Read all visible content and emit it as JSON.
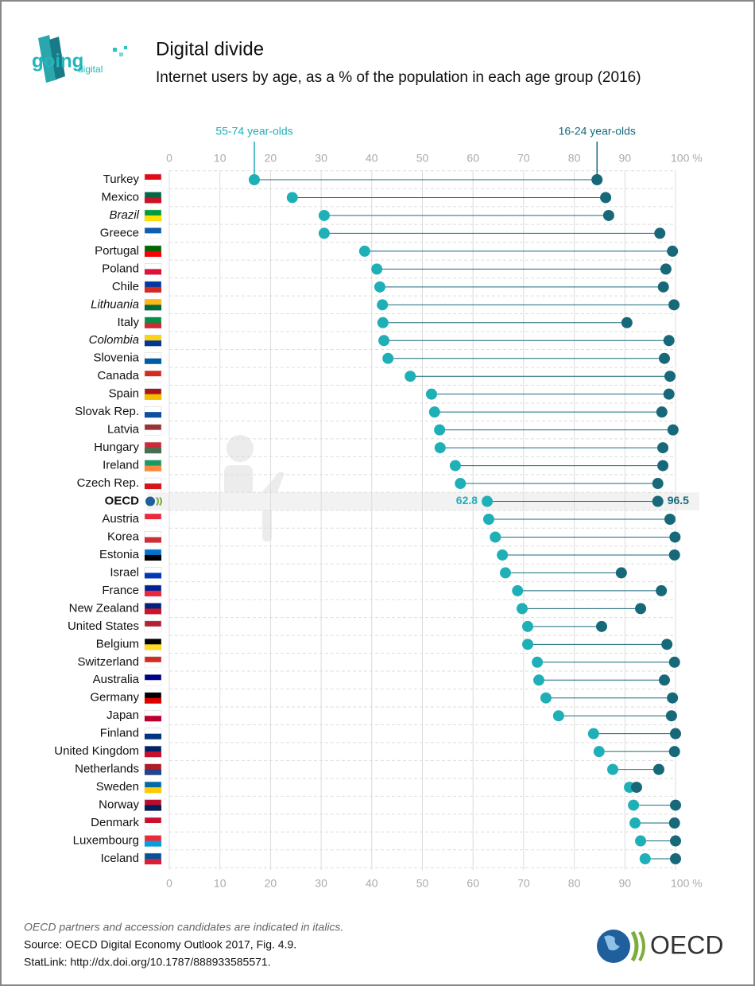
{
  "chart_data": {
    "type": "dumbbell",
    "title": "Digital divide",
    "subtitle": "Internet users by age, as a % of the population in each age group (2016)",
    "categories": [
      "Turkey",
      "Mexico",
      "Brazil",
      "Greece",
      "Portugal",
      "Poland",
      "Chile",
      "Lithuania",
      "Italy",
      "Colombia",
      "Slovenia",
      "Canada",
      "Spain",
      "Slovak Rep.",
      "Latvia",
      "Hungary",
      "Ireland",
      "Czech Rep.",
      "OECD",
      "Austria",
      "Korea",
      "Estonia",
      "Israel",
      "France",
      "New Zealand",
      "United States",
      "Belgium",
      "Switzerland",
      "Australia",
      "Germany",
      "Japan",
      "Finland",
      "United Kingdom",
      "Netherlands",
      "Sweden",
      "Norway",
      "Denmark",
      "Luxembourg",
      "Iceland"
    ],
    "italic": [
      2,
      7,
      9
    ],
    "highlight": 18,
    "series": [
      {
        "name": "55-74 year-olds",
        "color": "#1fb0b7",
        "values": [
          16.8,
          24.3,
          30.6,
          30.6,
          38.6,
          41.0,
          41.6,
          42.1,
          42.2,
          42.4,
          43.2,
          47.6,
          51.8,
          52.4,
          53.4,
          53.5,
          56.5,
          57.5,
          62.8,
          63.1,
          64.4,
          65.8,
          66.4,
          68.8,
          69.7,
          70.8,
          70.8,
          72.7,
          73.0,
          74.4,
          76.9,
          83.8,
          84.9,
          87.6,
          90.9,
          91.7,
          92.0,
          93.1,
          94.0
        ]
      },
      {
        "name": "16-24 year-olds",
        "color": "#17697a",
        "values": [
          84.5,
          86.2,
          86.8,
          96.9,
          99.4,
          98.1,
          97.6,
          99.7,
          90.4,
          98.7,
          97.8,
          98.9,
          98.7,
          97.3,
          99.5,
          97.5,
          97.5,
          96.5,
          96.5,
          98.9,
          99.9,
          99.8,
          89.3,
          97.2,
          93.1,
          85.4,
          98.3,
          99.8,
          97.8,
          99.4,
          99.2,
          100,
          99.8,
          96.7,
          92.3,
          100,
          99.8,
          100,
          100
        ]
      }
    ],
    "xlim": [
      0,
      100
    ],
    "xticks": [
      0,
      10,
      20,
      30,
      40,
      50,
      60,
      70,
      80,
      90,
      {
        "value": 100,
        "label": "100 %"
      }
    ],
    "grid": true,
    "notes": [
      "OECD partners and accession candidates are indicated in italics.",
      "Source: OECD Digital Economy Outlook 2017, Fig. 4.9.",
      "StatLink: http://dx.doi.org/10.1787/888933585571."
    ],
    "logo": {
      "top": "going",
      "bottom": "digital",
      "brand": "OECD"
    }
  }
}
